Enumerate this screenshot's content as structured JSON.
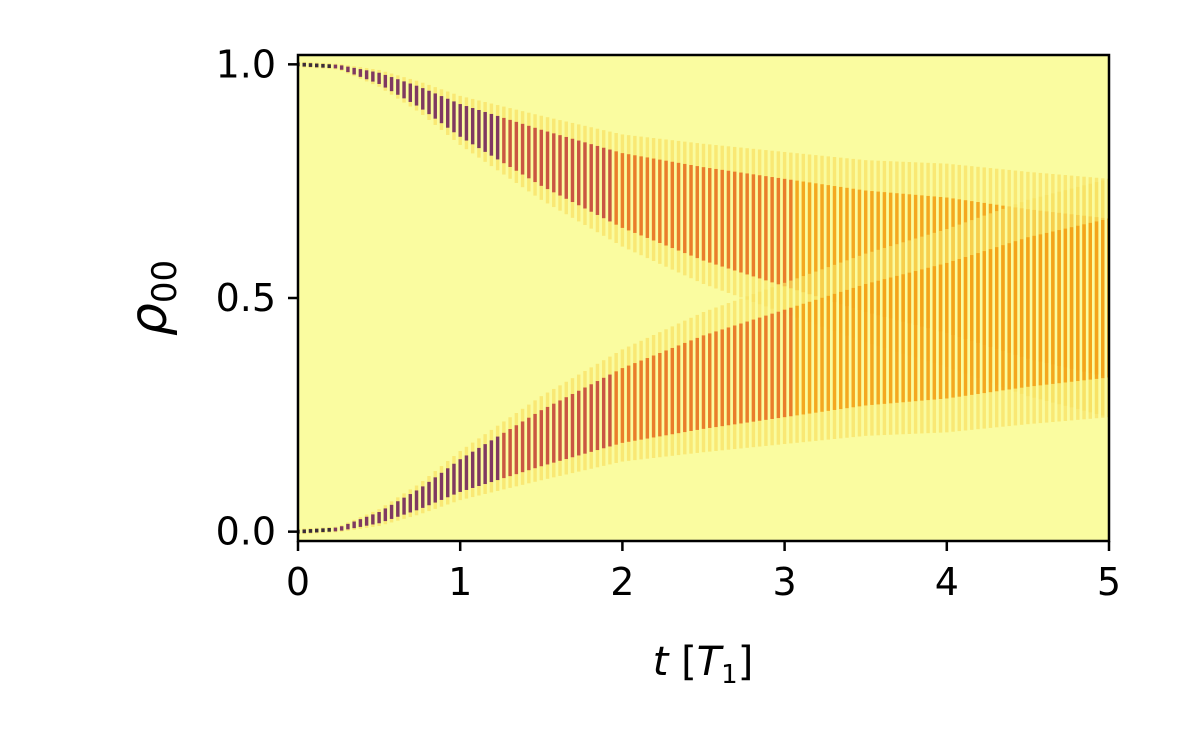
{
  "chart_data": {
    "type": "heatmap",
    "title": "",
    "xlabel": "t [T_1]",
    "ylabel": "ρ_00",
    "xlim": [
      0,
      5
    ],
    "ylim": [
      -0.02,
      1.02
    ],
    "xticks": [
      0,
      1,
      2,
      3,
      4,
      5
    ],
    "xtick_labels": [
      "0",
      "1",
      "2",
      "3",
      "4",
      "5"
    ],
    "yticks": [
      0.0,
      0.5,
      1.0
    ],
    "ytick_labels": [
      "0.0",
      "0.5",
      "1.0"
    ],
    "grid": false,
    "colormap": "inferno",
    "background_color": "#fafca0",
    "density_bands": [
      {
        "name": "",
        "t": [
          0,
          0.25,
          0.5,
          0.75,
          1.0,
          1.5,
          2.0,
          2.5,
          3.0,
          3.5,
          4.0,
          4.5,
          5.0
        ],
        "center": [
          1.0,
          0.995,
          0.97,
          0.93,
          0.88,
          0.8,
          0.73,
          0.68,
          0.64,
          0.6,
          0.57,
          0.53,
          0.5
        ],
        "spread": [
          0.0,
          0.004,
          0.012,
          0.022,
          0.035,
          0.06,
          0.08,
          0.1,
          0.115,
          0.13,
          0.145,
          0.16,
          0.17
        ]
      },
      {
        "name": "",
        "t": [
          0,
          0.25,
          0.5,
          0.75,
          1.0,
          1.5,
          2.0,
          2.5,
          3.0,
          3.5,
          4.0,
          4.5,
          5.0
        ],
        "center": [
          0.0,
          0.005,
          0.03,
          0.07,
          0.12,
          0.2,
          0.27,
          0.32,
          0.36,
          0.4,
          0.43,
          0.47,
          0.5
        ],
        "spread": [
          0.0,
          0.004,
          0.012,
          0.022,
          0.035,
          0.06,
          0.08,
          0.1,
          0.115,
          0.13,
          0.145,
          0.16,
          0.17
        ]
      }
    ]
  }
}
